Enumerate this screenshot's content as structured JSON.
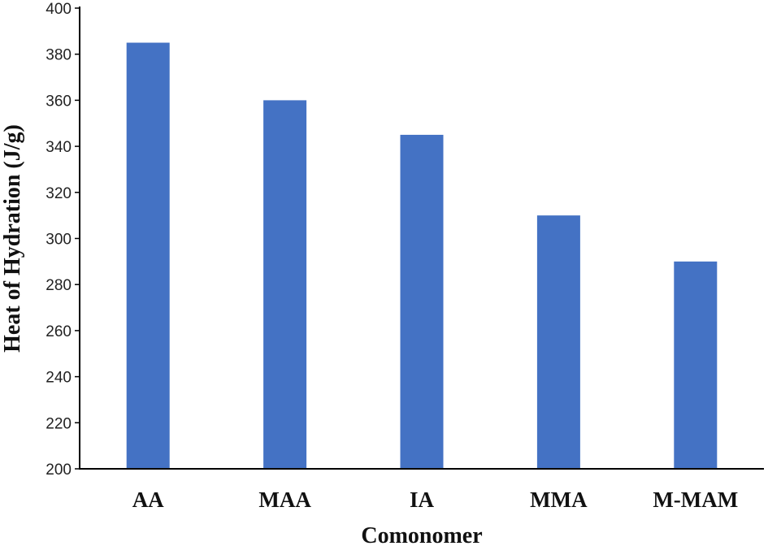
{
  "chart_data": {
    "type": "bar",
    "title": "",
    "xlabel": "Comonomer",
    "ylabel": "Heat of Hydration (J/g)",
    "categories": [
      "AA",
      "MAA",
      "IA",
      "MMA",
      "M-MAM"
    ],
    "values": [
      385,
      360,
      345,
      310,
      290
    ],
    "ylim": [
      200,
      400
    ],
    "yticks": [
      200,
      220,
      240,
      260,
      280,
      300,
      320,
      340,
      360,
      380,
      400
    ],
    "grid": false,
    "legend": "none",
    "bar_color": "#4472C4",
    "axis_color": "#000000"
  }
}
